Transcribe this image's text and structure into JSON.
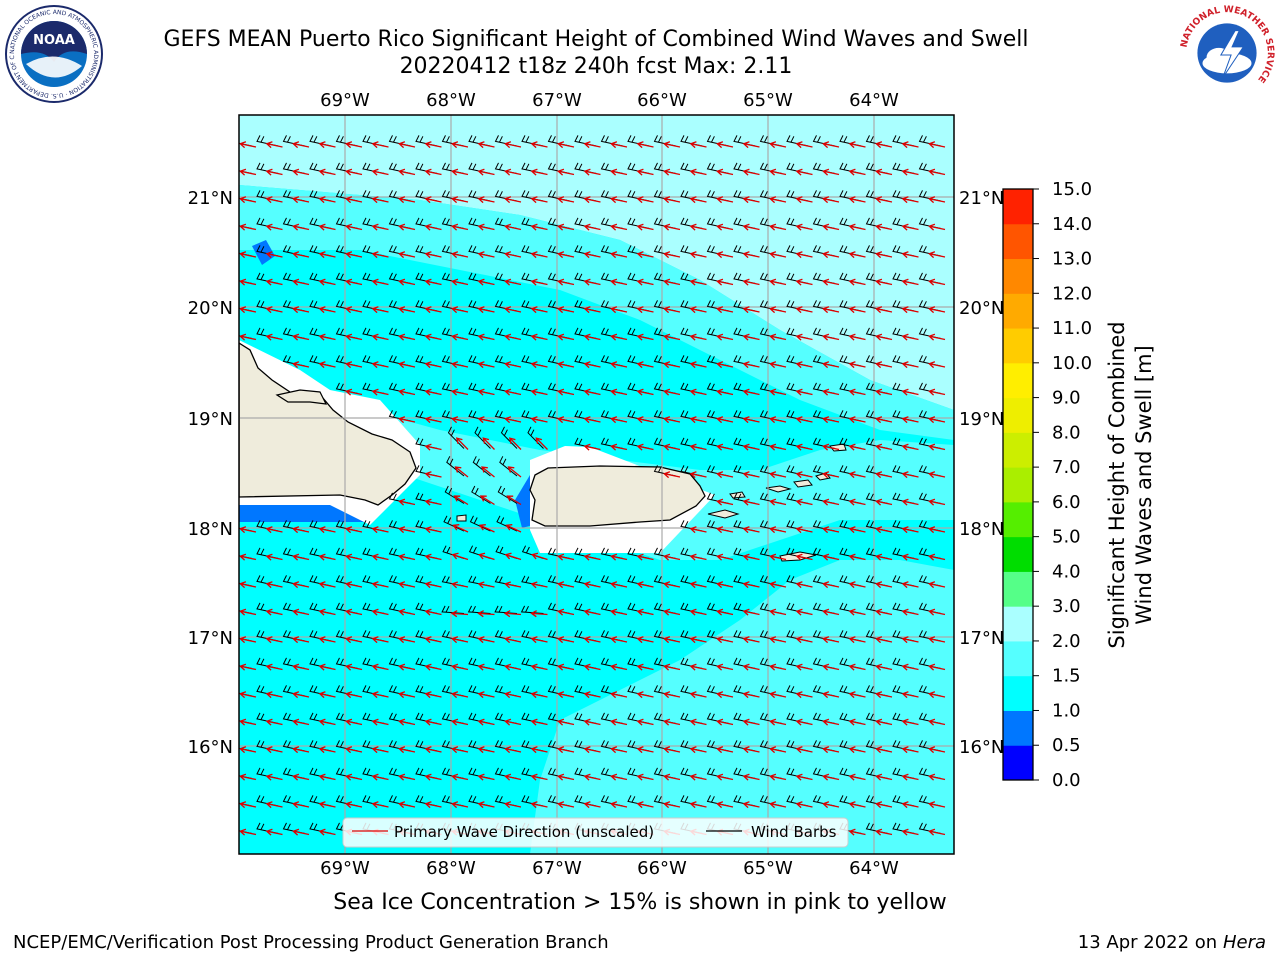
{
  "header": {
    "title_line1": "GEFS MEAN Puerto Rico Significant Height of Combined Wind Waves and Swell",
    "title_line2": "20220412 t18z 240h fcst   Max: 2.11",
    "noaa_logo_text": "NOAA",
    "noaa_ring_text": "NATIONAL OCEANIC AND ATMOSPHERIC ADMINISTRATION · U.S. DEPARTMENT OF COMMERCE",
    "nws_ring_text": "NATIONAL WEATHER SERVICE"
  },
  "map": {
    "lon_labels": [
      "69°W",
      "68°W",
      "67°W",
      "66°W",
      "65°W",
      "64°W"
    ],
    "lat_labels": [
      "21°N",
      "20°N",
      "19°N",
      "18°N",
      "17°N",
      "16°N"
    ],
    "legend": {
      "primary_wave": "Primary Wave Direction (unscaled)",
      "wind_barbs": "Wind Barbs"
    }
  },
  "colorbar": {
    "label_line1": "Significant Height of Combined",
    "label_line2": "Wind Waves and Swell [m]",
    "ticks": [
      "0.0",
      "0.5",
      "1.0",
      "1.5",
      "2.0",
      "3.0",
      "4.0",
      "5.0",
      "6.0",
      "7.0",
      "8.0",
      "9.0",
      "10.0",
      "11.0",
      "12.0",
      "13.0",
      "14.0",
      "15.0"
    ],
    "colors": [
      "#0000ff",
      "#0077ff",
      "#00ffff",
      "#55ffff",
      "#aaffff",
      "#55ff88",
      "#00dd00",
      "#55ee00",
      "#aaee00",
      "#ccee00",
      "#eeee00",
      "#ffee00",
      "#ffcc00",
      "#ffaa00",
      "#ff8800",
      "#ff5500",
      "#ff2200"
    ]
  },
  "sea_ice_note": "Sea Ice Concentration > 15% is shown in pink to yellow",
  "footer": {
    "left": "NCEP/EMC/Verification Post Processing Product Generation Branch",
    "right_prefix": "13 Apr 2022 on ",
    "right_machine": "Hera"
  }
}
